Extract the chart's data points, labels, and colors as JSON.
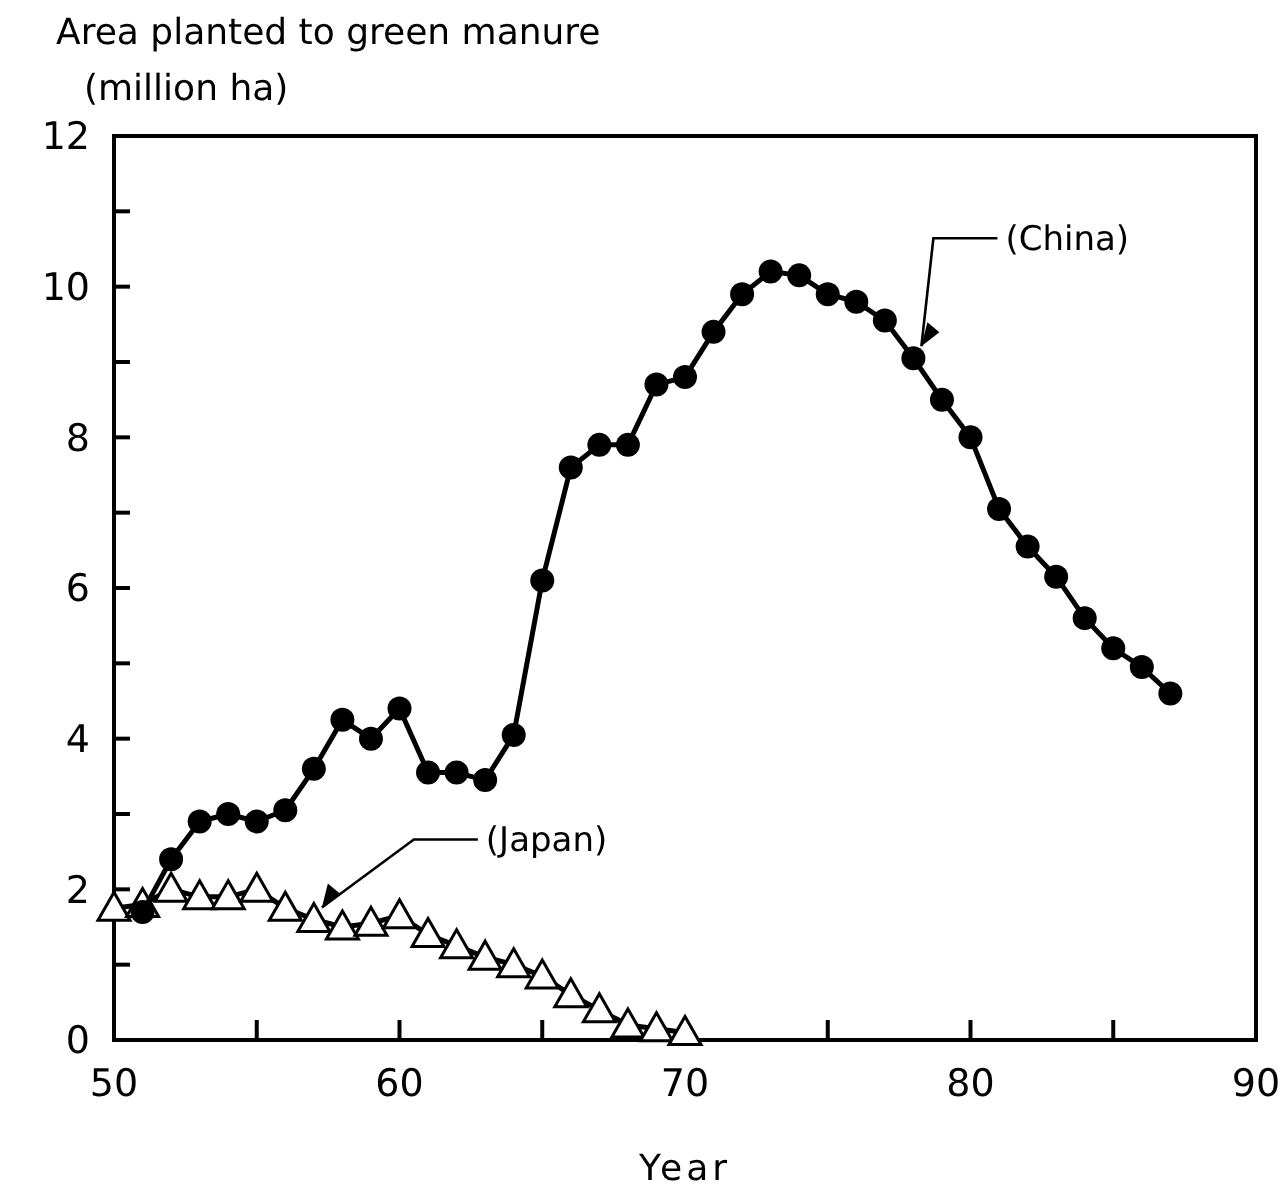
{
  "chart_data": {
    "type": "line",
    "title": "Area planted to green manure",
    "ylabel": "(million ha)",
    "xlabel": "Year",
    "xlim": [
      50,
      90
    ],
    "xticks": [
      50,
      {
        "value": 55,
        "label": null
      },
      60,
      {
        "value": 65,
        "label": null
      },
      70,
      {
        "value": 75,
        "label": null
      },
      80,
      {
        "value": 85,
        "label": null
      },
      90
    ],
    "ylim": [
      0,
      12
    ],
    "yticks": [
      0,
      {
        "value": 1,
        "label": null
      },
      2,
      {
        "value": 3,
        "label": null
      },
      4,
      {
        "value": 5,
        "label": null
      },
      6,
      {
        "value": 7,
        "label": null
      },
      8,
      {
        "value": 9,
        "label": null
      },
      10,
      {
        "value": 11,
        "label": null
      },
      12
    ],
    "grid": false,
    "legend": false,
    "line_style": "solid",
    "series": [
      {
        "name": "(China)",
        "color": "#000000",
        "marker": "circle",
        "x": [
          51,
          52,
          53,
          54,
          55,
          56,
          57,
          58,
          59,
          60,
          61,
          62,
          63,
          64,
          65,
          66,
          67,
          68,
          69,
          70,
          71,
          72,
          73,
          74,
          75,
          76,
          77,
          78,
          79,
          80,
          81,
          82,
          83,
          84,
          85,
          86,
          87
        ],
        "values": [
          1.7,
          2.4,
          2.9,
          3.0,
          2.9,
          3.05,
          3.6,
          4.25,
          4.0,
          4.4,
          3.55,
          3.55,
          3.45,
          4.05,
          6.1,
          7.6,
          7.9,
          7.9,
          8.7,
          8.8,
          9.4,
          9.9,
          10.2,
          10.15,
          9.9,
          9.8,
          9.55,
          9.05,
          8.5,
          8.0,
          7.05,
          6.55,
          6.15,
          5.6,
          5.2,
          4.95,
          4.6
        ]
      },
      {
        "name": "(Japan)",
        "color": "#000000",
        "marker": "triangle",
        "x": [
          50,
          51,
          52,
          53,
          54,
          55,
          56,
          57,
          58,
          59,
          60,
          61,
          62,
          63,
          64,
          65,
          66,
          67,
          68,
          69,
          70
        ],
        "values": [
          1.75,
          1.8,
          2.0,
          1.9,
          1.9,
          2.0,
          1.75,
          1.6,
          1.5,
          1.55,
          1.65,
          1.4,
          1.25,
          1.1,
          1.0,
          0.85,
          0.6,
          0.4,
          0.2,
          0.15,
          0.1
        ]
      }
    ]
  }
}
